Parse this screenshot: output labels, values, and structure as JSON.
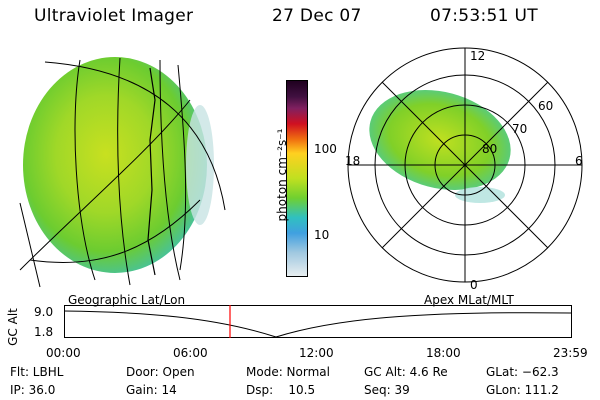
{
  "header": {
    "instrument": "Ultraviolet Imager",
    "date": "27 Dec 07",
    "time": "07:53:51 UT"
  },
  "colorbar": {
    "label": "photon cm⁻²s⁻¹",
    "ticks": [
      "100",
      "10"
    ]
  },
  "polar": {
    "hours": [
      "12",
      "18",
      "6",
      "0"
    ],
    "lat_labels": [
      "60",
      "70",
      "80"
    ]
  },
  "left_panel_title": "Geographic Lat/Lon",
  "right_panel_title": "Apex MLat/MLT",
  "altitude_plot": {
    "ylabel": "GC Alt",
    "yticks": [
      "9.0",
      "1.8"
    ],
    "xticks": [
      "00:00",
      "06:00",
      "12:00",
      "18:00",
      "23:59"
    ]
  },
  "info": {
    "flt": "Flt: LBHL",
    "ip": "IP: 36.0",
    "door": "Door: Open",
    "gain": "Gain: 14",
    "mode": "Mode: Normal",
    "dsp": "Dsp:    10.5",
    "gcalt": "GC Alt: 4.6 Re",
    "seq": "Seq: 39",
    "glat": "GLat: −62.3",
    "glon": "GLon: 111.2"
  },
  "colors": {
    "aurora_green": "#7fd020",
    "aurora_yellow": "#c8e020",
    "aurora_cyan": "#40c8c0",
    "marker_red": "#ff0000"
  }
}
